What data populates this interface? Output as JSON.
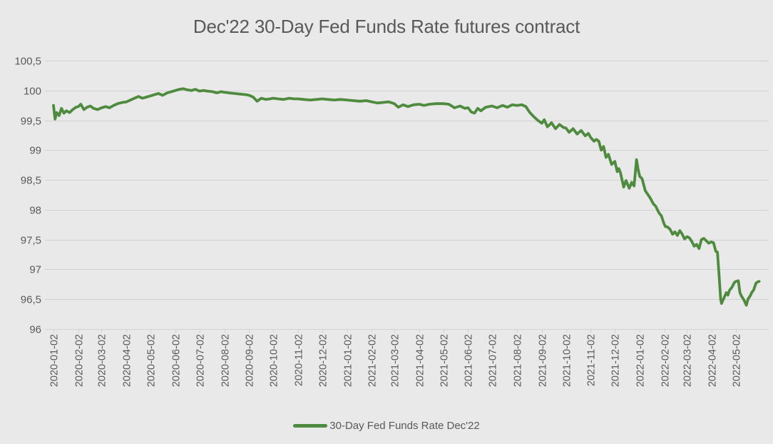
{
  "chart_data": {
    "type": "line",
    "title": "Dec'22 30-Day Fed Funds Rate futures contract",
    "xlabel": "",
    "ylabel": "",
    "ylim": [
      96,
      100.5
    ],
    "grid": true,
    "legend_position": "bottom",
    "x_unit": "days since 2020-01-02",
    "y_ticks": [
      {
        "label": "100,5",
        "value": 100.5
      },
      {
        "label": "100",
        "value": 100
      },
      {
        "label": "99,5",
        "value": 99.5
      },
      {
        "label": "99",
        "value": 99
      },
      {
        "label": "98,5",
        "value": 98.5
      },
      {
        "label": "98",
        "value": 98
      },
      {
        "label": "97,5",
        "value": 97.5
      },
      {
        "label": "97",
        "value": 97
      },
      {
        "label": "96,5",
        "value": 96.5
      },
      {
        "label": "96",
        "value": 96
      }
    ],
    "x_ticks": [
      {
        "label": "2020-01-02",
        "day": 0
      },
      {
        "label": "2020-02-02",
        "day": 31
      },
      {
        "label": "2020-03-02",
        "day": 60
      },
      {
        "label": "2020-04-02",
        "day": 91
      },
      {
        "label": "2020-05-02",
        "day": 121
      },
      {
        "label": "2020-06-02",
        "day": 152
      },
      {
        "label": "2020-07-02",
        "day": 182
      },
      {
        "label": "2020-08-02",
        "day": 213
      },
      {
        "label": "2020-09-02",
        "day": 244
      },
      {
        "label": "2020-10-02",
        "day": 274
      },
      {
        "label": "2020-11-02",
        "day": 305
      },
      {
        "label": "2020-12-02",
        "day": 335
      },
      {
        "label": "2021-01-02",
        "day": 366
      },
      {
        "label": "2021-02-02",
        "day": 397
      },
      {
        "label": "2021-03-02",
        "day": 425
      },
      {
        "label": "2021-04-02",
        "day": 456
      },
      {
        "label": "2021-05-02",
        "day": 486
      },
      {
        "label": "2021-06-02",
        "day": 517
      },
      {
        "label": "2021-07-02",
        "day": 547
      },
      {
        "label": "2021-08-02",
        "day": 578
      },
      {
        "label": "2021-09-02",
        "day": 609
      },
      {
        "label": "2021-10-02",
        "day": 639
      },
      {
        "label": "2021-11-02",
        "day": 670
      },
      {
        "label": "2021-12-02",
        "day": 700
      },
      {
        "label": "2022-01-02",
        "day": 731
      },
      {
        "label": "2022-02-02",
        "day": 762
      },
      {
        "label": "2022-03-02",
        "day": 790
      },
      {
        "label": "2022-04-02",
        "day": 821
      },
      {
        "label": "2022-05-02",
        "day": 851
      }
    ],
    "series": [
      {
        "name": "30-Day Fed Funds Rate Dec'22",
        "color": "#4e8b3e",
        "points": [
          [
            0,
            99.75
          ],
          [
            2,
            99.52
          ],
          [
            4,
            99.63
          ],
          [
            7,
            99.58
          ],
          [
            10,
            99.7
          ],
          [
            13,
            99.62
          ],
          [
            16,
            99.66
          ],
          [
            20,
            99.63
          ],
          [
            24,
            99.68
          ],
          [
            28,
            99.72
          ],
          [
            31,
            99.73
          ],
          [
            34,
            99.77
          ],
          [
            38,
            99.68
          ],
          [
            42,
            99.72
          ],
          [
            46,
            99.74
          ],
          [
            50,
            99.7
          ],
          [
            55,
            99.68
          ],
          [
            60,
            99.71
          ],
          [
            65,
            99.73
          ],
          [
            70,
            99.71
          ],
          [
            75,
            99.75
          ],
          [
            80,
            99.78
          ],
          [
            86,
            99.8
          ],
          [
            91,
            99.81
          ],
          [
            96,
            99.84
          ],
          [
            101,
            99.87
          ],
          [
            106,
            99.9
          ],
          [
            111,
            99.87
          ],
          [
            116,
            99.89
          ],
          [
            121,
            99.91
          ],
          [
            126,
            99.93
          ],
          [
            131,
            99.95
          ],
          [
            136,
            99.92
          ],
          [
            142,
            99.96
          ],
          [
            147,
            99.98
          ],
          [
            152,
            100.0
          ],
          [
            157,
            100.02
          ],
          [
            162,
            100.03
          ],
          [
            167,
            100.01
          ],
          [
            172,
            100.0
          ],
          [
            177,
            100.02
          ],
          [
            182,
            99.99
          ],
          [
            187,
            100.0
          ],
          [
            192,
            99.99
          ],
          [
            198,
            99.98
          ],
          [
            204,
            99.96
          ],
          [
            209,
            99.98
          ],
          [
            213,
            99.97
          ],
          [
            219,
            99.96
          ],
          [
            226,
            99.95
          ],
          [
            233,
            99.94
          ],
          [
            240,
            99.93
          ],
          [
            244,
            99.92
          ],
          [
            249,
            99.89
          ],
          [
            254,
            99.82
          ],
          [
            259,
            99.87
          ],
          [
            265,
            99.85
          ],
          [
            270,
            99.86
          ],
          [
            274,
            99.87
          ],
          [
            280,
            99.86
          ],
          [
            287,
            99.85
          ],
          [
            294,
            99.87
          ],
          [
            300,
            99.86
          ],
          [
            305,
            99.86
          ],
          [
            312,
            99.85
          ],
          [
            320,
            99.84
          ],
          [
            328,
            99.85
          ],
          [
            335,
            99.86
          ],
          [
            342,
            99.85
          ],
          [
            350,
            99.84
          ],
          [
            358,
            99.85
          ],
          [
            366,
            99.84
          ],
          [
            374,
            99.83
          ],
          [
            382,
            99.82
          ],
          [
            390,
            99.83
          ],
          [
            397,
            99.81
          ],
          [
            404,
            99.79
          ],
          [
            411,
            99.8
          ],
          [
            418,
            99.81
          ],
          [
            425,
            99.78
          ],
          [
            430,
            99.72
          ],
          [
            436,
            99.76
          ],
          [
            442,
            99.73
          ],
          [
            449,
            99.76
          ],
          [
            456,
            99.77
          ],
          [
            462,
            99.75
          ],
          [
            469,
            99.77
          ],
          [
            477,
            99.78
          ],
          [
            486,
            99.78
          ],
          [
            493,
            99.77
          ],
          [
            500,
            99.71
          ],
          [
            507,
            99.74
          ],
          [
            513,
            99.7
          ],
          [
            517,
            99.71
          ],
          [
            521,
            99.64
          ],
          [
            525,
            99.62
          ],
          [
            529,
            99.7
          ],
          [
            533,
            99.66
          ],
          [
            539,
            99.72
          ],
          [
            547,
            99.74
          ],
          [
            553,
            99.71
          ],
          [
            560,
            99.75
          ],
          [
            566,
            99.72
          ],
          [
            572,
            99.76
          ],
          [
            578,
            99.75
          ],
          [
            584,
            99.76
          ],
          [
            589,
            99.73
          ],
          [
            594,
            99.63
          ],
          [
            599,
            99.56
          ],
          [
            604,
            99.5
          ],
          [
            609,
            99.45
          ],
          [
            612,
            99.51
          ],
          [
            616,
            99.39
          ],
          [
            621,
            99.46
          ],
          [
            626,
            99.36
          ],
          [
            631,
            99.43
          ],
          [
            636,
            99.38
          ],
          [
            639,
            99.37
          ],
          [
            643,
            99.3
          ],
          [
            648,
            99.36
          ],
          [
            653,
            99.27
          ],
          [
            658,
            99.33
          ],
          [
            663,
            99.24
          ],
          [
            667,
            99.28
          ],
          [
            670,
            99.21
          ],
          [
            674,
            99.15
          ],
          [
            677,
            99.18
          ],
          [
            680,
            99.15
          ],
          [
            683,
            99.0
          ],
          [
            686,
            99.06
          ],
          [
            689,
            98.88
          ],
          [
            692,
            98.93
          ],
          [
            696,
            98.76
          ],
          [
            700,
            98.81
          ],
          [
            703,
            98.64
          ],
          [
            705,
            98.69
          ],
          [
            707,
            98.62
          ],
          [
            711,
            98.38
          ],
          [
            714,
            98.49
          ],
          [
            718,
            98.36
          ],
          [
            721,
            98.46
          ],
          [
            724,
            98.4
          ],
          [
            727,
            98.84
          ],
          [
            729,
            98.68
          ],
          [
            731,
            98.56
          ],
          [
            734,
            98.52
          ],
          [
            738,
            98.32
          ],
          [
            741,
            98.26
          ],
          [
            744,
            98.2
          ],
          [
            748,
            98.1
          ],
          [
            751,
            98.06
          ],
          [
            755,
            97.95
          ],
          [
            758,
            97.9
          ],
          [
            761,
            97.78
          ],
          [
            763,
            97.72
          ],
          [
            766,
            97.71
          ],
          [
            769,
            97.67
          ],
          [
            772,
            97.59
          ],
          [
            775,
            97.63
          ],
          [
            778,
            97.57
          ],
          [
            781,
            97.65
          ],
          [
            784,
            97.59
          ],
          [
            787,
            97.51
          ],
          [
            790,
            97.55
          ],
          [
            793,
            97.53
          ],
          [
            796,
            97.47
          ],
          [
            799,
            97.39
          ],
          [
            802,
            97.42
          ],
          [
            805,
            97.35
          ],
          [
            808,
            97.5
          ],
          [
            811,
            97.52
          ],
          [
            814,
            97.48
          ],
          [
            817,
            97.44
          ],
          [
            820,
            97.46
          ],
          [
            823,
            97.45
          ],
          [
            826,
            97.3
          ],
          [
            828,
            97.29
          ],
          [
            830,
            96.9
          ],
          [
            832,
            96.5
          ],
          [
            833,
            96.43
          ],
          [
            835,
            96.49
          ],
          [
            837,
            96.55
          ],
          [
            839,
            96.61
          ],
          [
            841,
            96.57
          ],
          [
            843,
            96.65
          ],
          [
            846,
            96.7
          ],
          [
            849,
            96.78
          ],
          [
            851,
            96.8
          ],
          [
            854,
            96.81
          ],
          [
            856,
            96.61
          ],
          [
            858,
            96.55
          ],
          [
            861,
            96.49
          ],
          [
            864,
            96.4
          ],
          [
            866,
            96.5
          ],
          [
            869,
            96.56
          ],
          [
            871,
            96.62
          ],
          [
            873,
            96.65
          ],
          [
            876,
            96.77
          ],
          [
            878,
            96.79
          ],
          [
            880,
            96.8
          ]
        ]
      }
    ]
  },
  "legend": {
    "items": [
      {
        "label": "30-Day Fed Funds Rate Dec'22",
        "color": "#4e8b3e"
      }
    ]
  },
  "colors": {
    "background": "#e9e9e9",
    "gridline": "#d2d2d2",
    "text": "#595959",
    "line_green": "#4e8b3e"
  }
}
